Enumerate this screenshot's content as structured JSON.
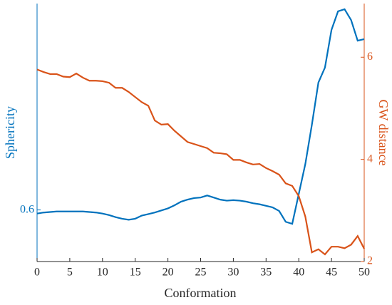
{
  "chart_data": {
    "type": "line",
    "xlabel": "Conformation",
    "ylabel": "Sphericity",
    "y2label": "GW distance",
    "x": [
      0,
      1,
      2,
      3,
      4,
      5,
      6,
      7,
      8,
      9,
      10,
      11,
      12,
      13,
      14,
      15,
      16,
      17,
      18,
      19,
      20,
      21,
      22,
      23,
      24,
      25,
      26,
      27,
      28,
      29,
      30,
      31,
      32,
      33,
      34,
      35,
      36,
      37,
      38,
      39,
      40,
      41,
      42,
      43,
      44,
      45,
      46,
      47,
      48,
      49,
      50
    ],
    "series": [
      {
        "name": "Sphericity",
        "color": "#0072bd",
        "axis": "y",
        "values": [
          0.593,
          0.595,
          0.596,
          0.597,
          0.597,
          0.597,
          0.597,
          0.597,
          0.596,
          0.595,
          0.593,
          0.59,
          0.586,
          0.583,
          0.581,
          0.583,
          0.589,
          0.592,
          0.595,
          0.599,
          0.603,
          0.609,
          0.616,
          0.62,
          0.623,
          0.624,
          0.628,
          0.624,
          0.62,
          0.618,
          0.619,
          0.618,
          0.616,
          0.613,
          0.611,
          0.608,
          0.605,
          0.598,
          0.577,
          0.573,
          0.631,
          0.689,
          0.765,
          0.847,
          0.876,
          0.949,
          0.985,
          0.989,
          0.968,
          0.928,
          0.931
        ]
      },
      {
        "name": "GW distance",
        "color": "#d95319",
        "axis": "y2",
        "values": [
          5.76,
          5.71,
          5.67,
          5.67,
          5.62,
          5.61,
          5.68,
          5.6,
          5.54,
          5.54,
          5.53,
          5.5,
          5.4,
          5.4,
          5.32,
          5.22,
          5.12,
          5.05,
          4.76,
          4.68,
          4.69,
          4.56,
          4.45,
          4.34,
          4.3,
          4.26,
          4.22,
          4.13,
          4.12,
          4.1,
          3.99,
          3.99,
          3.94,
          3.9,
          3.91,
          3.83,
          3.77,
          3.7,
          3.53,
          3.48,
          3.28,
          2.88,
          2.18,
          2.24,
          2.14,
          2.29,
          2.29,
          2.26,
          2.33,
          2.5,
          2.25
        ]
      }
    ],
    "xlim": [
      0,
      50
    ],
    "xticks": [
      0,
      5,
      10,
      15,
      20,
      25,
      30,
      35,
      40,
      45,
      50
    ],
    "ylim": [
      0.5,
      1.0
    ],
    "yticks": [
      0.6
    ],
    "y2lim": [
      2,
      7.05
    ],
    "y2ticks": [
      2,
      4,
      6
    ]
  }
}
